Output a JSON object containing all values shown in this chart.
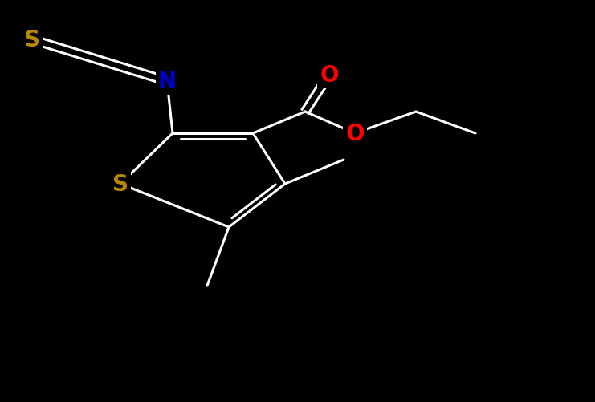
{
  "bg_color": "#000000",
  "atom_colors": {
    "S_thio": "#b8860b",
    "S_ncs": "#b8860b",
    "N": "#0000cd",
    "O": "#ff0000",
    "bond": "#ffffff"
  },
  "font_size": 20,
  "line_width": 2.2
}
